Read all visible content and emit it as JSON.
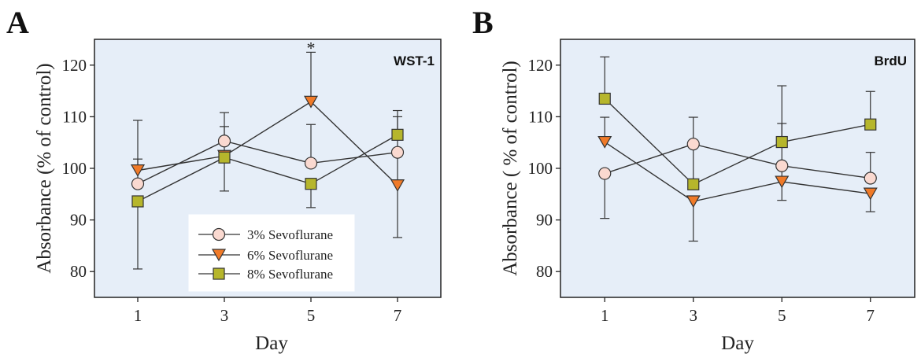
{
  "legend": {
    "entries": [
      {
        "label": "3% Sevoflurane",
        "marker": "circle",
        "fill": "#fad9d0"
      },
      {
        "label": "6% Sevoflurane",
        "marker": "triangle-down",
        "fill": "#f07a28"
      },
      {
        "label": "8% Sevoflurane",
        "marker": "square",
        "fill": "#b6b62c"
      }
    ]
  },
  "colors": {
    "plot_background": "#e6eef8",
    "axis": "#222222",
    "series_line": "#333333"
  },
  "chart_data": [
    {
      "panel_letter": "A",
      "panel_tag": "WST-1",
      "type": "line",
      "xlabel": "Day",
      "ylabel": "Absorbance (% of control)",
      "x": [
        1,
        3,
        5,
        7
      ],
      "xticks": [
        "1",
        "3",
        "5",
        "7"
      ],
      "yticks": [
        80,
        90,
        100,
        110,
        120
      ],
      "ylim": [
        75,
        125
      ],
      "xlim": [
        0,
        8
      ],
      "annotation": {
        "text": "*",
        "day": 5,
        "value": 124
      },
      "series": [
        {
          "name": "3% Sevoflurane",
          "values": [
            97,
            105.3,
            101,
            103.1
          ],
          "err_up": [
            4.8,
            5.5,
            7.5,
            0
          ],
          "err_down": [
            0,
            0,
            0,
            0
          ]
        },
        {
          "name": "6% Sevoflurane",
          "values": [
            99.6,
            102.4,
            112.9,
            96.7
          ],
          "err_up": [
            9.7,
            5.7,
            9.6,
            13.3
          ],
          "err_down": [
            0,
            0,
            0,
            10.1
          ]
        },
        {
          "name": "8% Sevoflurane",
          "values": [
            93.6,
            102.1,
            97,
            106.5
          ],
          "err_up": [
            0,
            0,
            0,
            4.7
          ],
          "err_down": [
            13.1,
            6.5,
            4.6,
            0
          ]
        }
      ],
      "legend_position": "lower-center",
      "grid": false
    },
    {
      "panel_letter": "B",
      "panel_tag": "BrdU",
      "type": "line",
      "xlabel": "Day",
      "ylabel": "Absorbance ( % of control)",
      "x": [
        1,
        3,
        5,
        7
      ],
      "xticks": [
        "1",
        "3",
        "5",
        "7"
      ],
      "yticks": [
        80,
        90,
        100,
        110,
        120
      ],
      "ylim": [
        75,
        125
      ],
      "xlim": [
        0,
        8
      ],
      "series": [
        {
          "name": "3% Sevoflurane",
          "values": [
            99,
            104.7,
            100.5,
            98.1
          ],
          "err_up": [
            0,
            5.2,
            0,
            5
          ],
          "err_down": [
            8.7,
            0,
            0,
            0
          ]
        },
        {
          "name": "6% Sevoflurane",
          "values": [
            105.1,
            93.6,
            97.4,
            95.1
          ],
          "err_up": [
            4.8,
            0,
            11.3,
            0
          ],
          "err_down": [
            0,
            7.7,
            3.6,
            3.5
          ]
        },
        {
          "name": "8% Sevoflurane",
          "values": [
            113.5,
            96.9,
            105.1,
            108.5
          ],
          "err_up": [
            8.1,
            7.8,
            10.9,
            6.4
          ],
          "err_down": [
            0,
            0,
            0,
            0
          ]
        }
      ],
      "grid": false
    }
  ]
}
